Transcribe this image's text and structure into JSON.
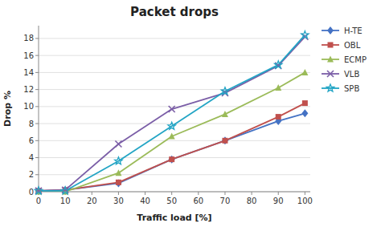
{
  "chart_data": {
    "type": "line",
    "title": "Packet drops",
    "xlabel": "Traffic load [%]",
    "ylabel": "Drop %",
    "x": [
      0,
      10,
      30,
      50,
      70,
      90,
      100
    ],
    "xlim": [
      0,
      102
    ],
    "ylim": [
      0,
      19.5
    ],
    "xticks": [
      0,
      10,
      20,
      30,
      40,
      50,
      60,
      70,
      80,
      90,
      100
    ],
    "yticks": [
      0,
      2,
      4,
      6,
      8,
      10,
      12,
      14,
      16,
      18
    ],
    "grid": true,
    "legend": "right",
    "series": [
      {
        "name": "H-TE",
        "color": "#4472C4",
        "marker": "diamond",
        "values": [
          0.1,
          0.2,
          1.0,
          3.8,
          6.0,
          8.3,
          9.2
        ]
      },
      {
        "name": "OBL",
        "color": "#C0504D",
        "marker": "square",
        "values": [
          0.1,
          0.2,
          1.1,
          3.8,
          6.0,
          8.8,
          10.4
        ]
      },
      {
        "name": "ECMP",
        "color": "#9BBB59",
        "marker": "triangle",
        "values": [
          0.0,
          0.0,
          2.2,
          6.5,
          9.1,
          12.2,
          14.0
        ]
      },
      {
        "name": "VLB",
        "color": "#7B5EA7",
        "marker": "x",
        "values": [
          0.1,
          0.2,
          5.6,
          9.7,
          11.6,
          14.8,
          18.2
        ]
      },
      {
        "name": "SPB",
        "color": "#23A5C5",
        "marker": "star",
        "values": [
          0.1,
          0.1,
          3.6,
          7.7,
          11.8,
          14.9,
          18.4
        ]
      }
    ]
  }
}
